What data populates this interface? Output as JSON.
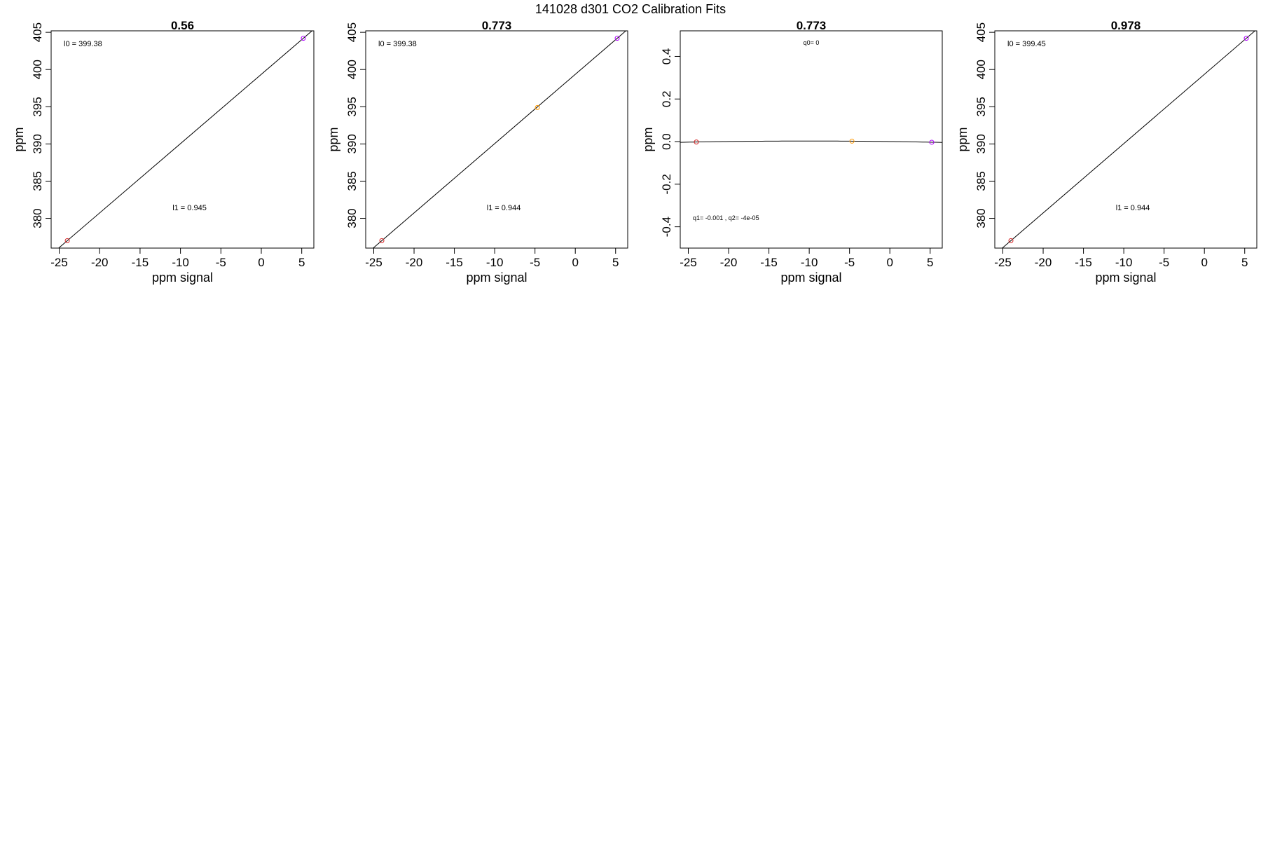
{
  "figure": {
    "title": "141028   d301   CO2 Calibration Fits"
  },
  "chart_data": [
    {
      "type": "scatter",
      "title": "0.56",
      "xlabel": "ppm signal",
      "ylabel": "ppm",
      "xlim": [
        -26,
        6.5
      ],
      "ylim": [
        376,
        405.2
      ],
      "xticks": [
        -25,
        -20,
        -15,
        -10,
        -5,
        0,
        5
      ],
      "yticks": [
        380,
        385,
        390,
        395,
        400,
        405
      ],
      "grid": false,
      "points": [
        {
          "x": -24.0,
          "y": 377.0,
          "color": "#d62728"
        },
        {
          "x": 5.2,
          "y": 404.2,
          "color": "#b000ff"
        }
      ],
      "fit": {
        "kind": "linear",
        "l0": 399.38,
        "l1": 0.945
      },
      "annotations": [
        "l0 =  399.38",
        "l1 =  0.945"
      ]
    },
    {
      "type": "scatter",
      "title": "0.773",
      "xlabel": "ppm signal",
      "ylabel": "ppm",
      "xlim": [
        -26,
        6.5
      ],
      "ylim": [
        376,
        405.2
      ],
      "xticks": [
        -25,
        -20,
        -15,
        -10,
        -5,
        0,
        5
      ],
      "yticks": [
        380,
        385,
        390,
        395,
        400,
        405
      ],
      "grid": false,
      "points": [
        {
          "x": -24.0,
          "y": 377.0,
          "color": "#d62728"
        },
        {
          "x": -4.7,
          "y": 394.9,
          "color": "#ff9900"
        },
        {
          "x": 5.2,
          "y": 404.2,
          "color": "#b000ff"
        }
      ],
      "fit": {
        "kind": "linear",
        "l0": 399.38,
        "l1": 0.944
      },
      "annotations": [
        "l0 =  399.38",
        "l1 =  0.944"
      ]
    },
    {
      "type": "scatter",
      "title": "0.773",
      "xlabel": "ppm signal",
      "ylabel": "ppm",
      "xlim": [
        -26,
        6.5
      ],
      "ylim": [
        -0.5,
        0.52
      ],
      "xticks": [
        -25,
        -20,
        -15,
        -10,
        -5,
        0,
        5
      ],
      "yticks": [
        -0.4,
        -0.2,
        0.0,
        0.2,
        0.4
      ],
      "ytick_labels": [
        "-0.4",
        "-0.2",
        "0.0",
        "0.2",
        "0.4"
      ],
      "grid": false,
      "points": [
        {
          "x": -24.0,
          "y": -0.002,
          "color": "#d62728"
        },
        {
          "x": -4.7,
          "y": 0.002,
          "color": "#ff9900"
        },
        {
          "x": 5.2,
          "y": -0.003,
          "color": "#b000ff"
        }
      ],
      "fit": {
        "kind": "quadratic",
        "q0": 0,
        "q1": -0.001,
        "q2": -4e-05
      },
      "annotations": [
        "q0= 0",
        "q1= -0.001 , q2= -4e-05"
      ]
    },
    {
      "type": "scatter",
      "title": "0.978",
      "xlabel": "ppm signal",
      "ylabel": "ppm",
      "xlim": [
        -26,
        6.5
      ],
      "ylim": [
        376,
        405.2
      ],
      "xticks": [
        -25,
        -20,
        -15,
        -10,
        -5,
        0,
        5
      ],
      "yticks": [
        380,
        385,
        390,
        395,
        400,
        405
      ],
      "grid": false,
      "points": [
        {
          "x": -24.0,
          "y": 377.0,
          "color": "#d62728"
        },
        {
          "x": 5.2,
          "y": 404.2,
          "color": "#b000ff"
        }
      ],
      "fit": {
        "kind": "linear",
        "l0": 399.45,
        "l1": 0.944
      },
      "annotations": [
        "l0 =  399.45",
        "l1 =  0.944"
      ]
    }
  ]
}
